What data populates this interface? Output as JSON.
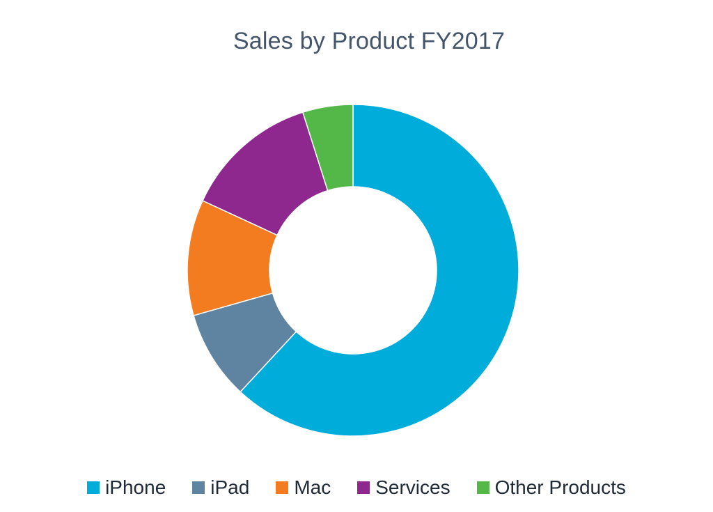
{
  "chart_data": {
    "type": "pie",
    "variant": "donut",
    "title": "Sales by Product FY2017",
    "categories": [
      "iPhone",
      "iPad",
      "Mac",
      "Services",
      "Other Products"
    ],
    "values": [
      61.9,
      8.7,
      11.3,
      13.2,
      4.9
    ],
    "colors": [
      "#00ADDA",
      "#5E84A2",
      "#F37C20",
      "#8E278E",
      "#53B848"
    ],
    "legend_position": "bottom",
    "start_angle_degrees": 0,
    "direction": "clockwise"
  }
}
